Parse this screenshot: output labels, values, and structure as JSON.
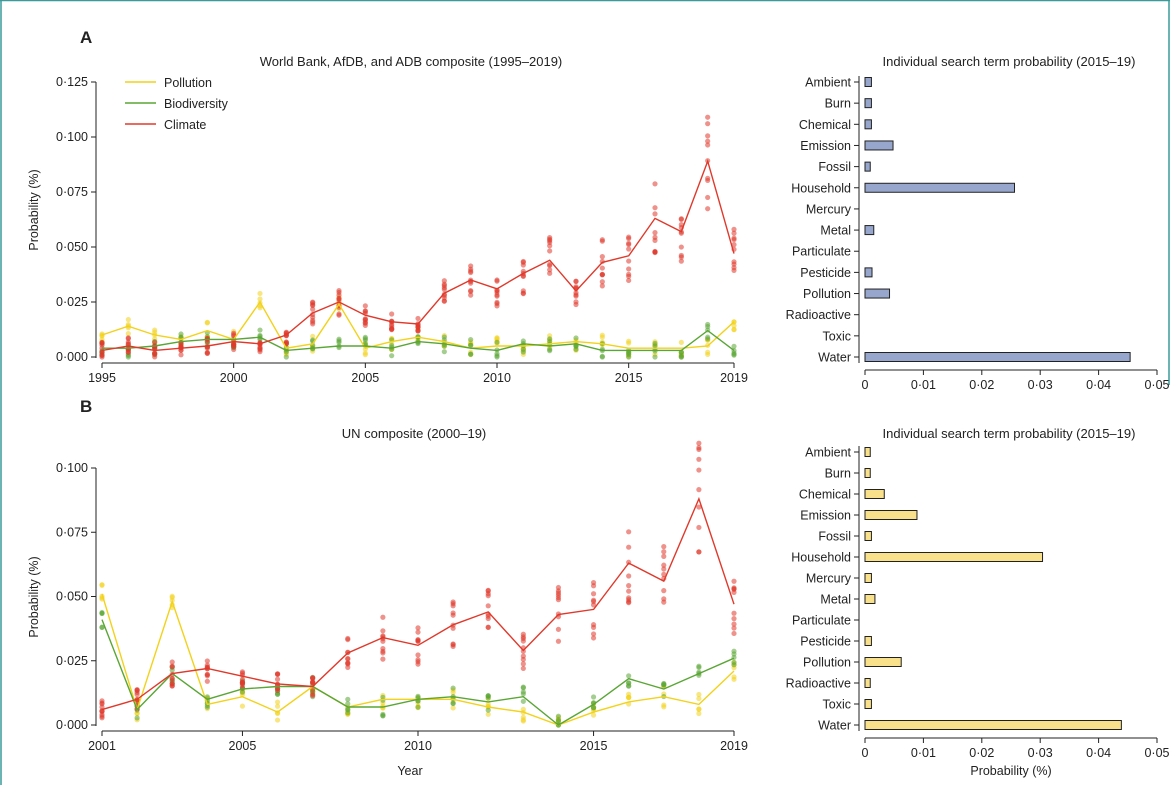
{
  "colors": {
    "pollution": "#f2d21a",
    "biodiversity": "#5aa635",
    "climate": "#e0392b",
    "bar_fill_a": "#97a6cc",
    "bar_fill_b": "#f9e08a",
    "frame": "#3a9b9a"
  },
  "labels": {
    "panel_a": "A",
    "panel_b": "B",
    "title_a_line": "World Bank, AfDB, and ADB composite (1995–2019)",
    "title_a_bar": "Individual search term probability (2015–19)",
    "title_b_line": "UN composite (2000–19)",
    "title_b_bar": "Individual search term probability (2015–19)",
    "ylabel": "Probability (%)",
    "xlabel_line": "Year",
    "xlabel_bar": "Probability (%)"
  },
  "chart_data": [
    {
      "type": "line",
      "panel": "A",
      "title": "World Bank, AfDB, and ADB composite (1995–2019)",
      "xlabel": "",
      "ylabel": "Probability (%)",
      "xlim": [
        1995,
        2019
      ],
      "ylim": [
        0,
        0.125
      ],
      "xticks": [
        1995,
        2000,
        2005,
        2010,
        2015,
        2019
      ],
      "yticks": [
        0,
        0.025,
        0.05,
        0.075,
        0.1,
        0.125
      ],
      "ytick_labels": [
        "0·000",
        "0·025",
        "0·050",
        "0·075",
        "0·100",
        "0·125"
      ],
      "legend": "top-left",
      "series": [
        {
          "name": "Pollution",
          "color": "#f2d21a",
          "x": [
            1995,
            1996,
            1997,
            1998,
            1999,
            2000,
            2001,
            2002,
            2003,
            2004,
            2005,
            2006,
            2007,
            2008,
            2009,
            2010,
            2011,
            2012,
            2013,
            2014,
            2015,
            2016,
            2017,
            2018,
            2019
          ],
          "y": [
            0.01,
            0.014,
            0.01,
            0.008,
            0.012,
            0.008,
            0.025,
            0.004,
            0.006,
            0.024,
            0.004,
            0.007,
            0.009,
            0.007,
            0.004,
            0.005,
            0.005,
            0.006,
            0.007,
            0.006,
            0.004,
            0.004,
            0.004,
            0.005,
            0.016
          ]
        },
        {
          "name": "Biodiversity",
          "color": "#5aa635",
          "x": [
            1995,
            1996,
            1997,
            1998,
            1999,
            2000,
            2001,
            2002,
            2003,
            2004,
            2005,
            2006,
            2007,
            2008,
            2009,
            2010,
            2011,
            2012,
            2013,
            2014,
            2015,
            2016,
            2017,
            2018,
            2019
          ],
          "y": [
            0.004,
            0.004,
            0.005,
            0.007,
            0.008,
            0.008,
            0.009,
            0.003,
            0.004,
            0.005,
            0.005,
            0.004,
            0.007,
            0.006,
            0.004,
            0.003,
            0.006,
            0.005,
            0.006,
            0.003,
            0.003,
            0.003,
            0.003,
            0.012,
            0.003
          ]
        },
        {
          "name": "Climate",
          "color": "#e0392b",
          "x": [
            1995,
            1996,
            1997,
            1998,
            1999,
            2000,
            2001,
            2002,
            2003,
            2004,
            2005,
            2006,
            2007,
            2008,
            2009,
            2010,
            2011,
            2012,
            2013,
            2014,
            2015,
            2016,
            2017,
            2018,
            2019
          ],
          "y": [
            0.003,
            0.005,
            0.003,
            0.004,
            0.005,
            0.007,
            0.006,
            0.01,
            0.02,
            0.025,
            0.019,
            0.016,
            0.015,
            0.029,
            0.035,
            0.031,
            0.038,
            0.044,
            0.03,
            0.043,
            0.046,
            0.063,
            0.057,
            0.089,
            0.047
          ]
        }
      ]
    },
    {
      "type": "bar",
      "panel": "A",
      "orientation": "horizontal",
      "title": "Individual search term probability (2015–19)",
      "xlabel": "",
      "xlim": [
        0,
        0.05
      ],
      "xticks": [
        0,
        0.01,
        0.02,
        0.03,
        0.04,
        0.05
      ],
      "xtick_labels": [
        "0",
        "0·01",
        "0·02",
        "0·03",
        "0·04",
        "0·05"
      ],
      "categories": [
        "Ambient",
        "Burn",
        "Chemical",
        "Emission",
        "Fossil",
        "Household",
        "Mercury",
        "Metal",
        "Particulate",
        "Pesticide",
        "Pollution",
        "Radioactive",
        "Toxic",
        "Water"
      ],
      "values": [
        0.0011,
        0.0011,
        0.0011,
        0.0048,
        0.0009,
        0.0256,
        0,
        0.0015,
        0,
        0.0012,
        0.0042,
        0,
        0,
        0.0454
      ]
    },
    {
      "type": "line",
      "panel": "B",
      "title": "UN composite (2000–19)",
      "xlabel": "Year",
      "ylabel": "Probability (%)",
      "xlim": [
        2001,
        2019
      ],
      "ylim": [
        0,
        0.1
      ],
      "xticks": [
        2001,
        2005,
        2010,
        2015,
        2019
      ],
      "yticks": [
        0,
        0.025,
        0.05,
        0.075,
        0.1
      ],
      "ytick_labels": [
        "0·000",
        "0·025",
        "0·050",
        "0·075",
        "0·100"
      ],
      "series": [
        {
          "name": "Pollution",
          "color": "#f2d21a",
          "x": [
            2001,
            2002,
            2003,
            2004,
            2005,
            2006,
            2007,
            2008,
            2009,
            2010,
            2011,
            2012,
            2013,
            2014,
            2015,
            2016,
            2017,
            2018,
            2019
          ],
          "y": [
            0.051,
            0.006,
            0.048,
            0.008,
            0.011,
            0.005,
            0.015,
            0.007,
            0.01,
            0.01,
            0.01,
            0.007,
            0.005,
            0.0,
            0.005,
            0.009,
            0.011,
            0.008,
            0.021
          ]
        },
        {
          "name": "Biodiversity",
          "color": "#5aa635",
          "x": [
            2001,
            2002,
            2003,
            2004,
            2005,
            2006,
            2007,
            2008,
            2009,
            2010,
            2011,
            2012,
            2013,
            2014,
            2015,
            2016,
            2017,
            2018,
            2019
          ],
          "y": [
            0.041,
            0.006,
            0.02,
            0.01,
            0.014,
            0.015,
            0.015,
            0.007,
            0.007,
            0.01,
            0.011,
            0.009,
            0.011,
            0.0,
            0.008,
            0.018,
            0.014,
            0.02,
            0.026
          ]
        },
        {
          "name": "Climate",
          "color": "#e0392b",
          "x": [
            2001,
            2002,
            2003,
            2004,
            2005,
            2006,
            2007,
            2008,
            2009,
            2010,
            2011,
            2012,
            2013,
            2014,
            2015,
            2016,
            2017,
            2018,
            2019
          ],
          "y": [
            0.006,
            0.01,
            0.02,
            0.022,
            0.019,
            0.016,
            0.015,
            0.028,
            0.034,
            0.031,
            0.039,
            0.044,
            0.029,
            0.043,
            0.045,
            0.063,
            0.056,
            0.088,
            0.047
          ]
        }
      ]
    },
    {
      "type": "bar",
      "panel": "B",
      "orientation": "horizontal",
      "title": "Individual search term probability (2015–19)",
      "xlabel": "Probability (%)",
      "xlim": [
        0,
        0.05
      ],
      "xticks": [
        0,
        0.01,
        0.02,
        0.03,
        0.04,
        0.05
      ],
      "xtick_labels": [
        "0",
        "0·01",
        "0·02",
        "0·03",
        "0·04",
        "0·05"
      ],
      "categories": [
        "Ambient",
        "Burn",
        "Chemical",
        "Emission",
        "Fossil",
        "Household",
        "Mercury",
        "Metal",
        "Particulate",
        "Pesticide",
        "Pollution",
        "Radioactive",
        "Toxic",
        "Water"
      ],
      "values": [
        0.0009,
        0.0009,
        0.0033,
        0.0089,
        0.0011,
        0.0304,
        0.0011,
        0.0017,
        0,
        0.0011,
        0.0062,
        0.0009,
        0.0011,
        0.0439
      ]
    }
  ]
}
